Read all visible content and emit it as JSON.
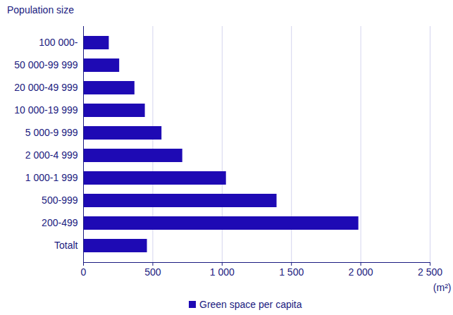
{
  "chart_data": {
    "type": "bar",
    "orientation": "horizontal",
    "y_label": "Population size",
    "x_label": "(m²)",
    "categories": [
      "100 000-",
      "50 000-99 999",
      "20 000-49 999",
      "10 000-19 999",
      "5 000-9 999",
      "2 000-4 999",
      "1 000-1 999",
      "500-999",
      "200-499",
      "Totalt"
    ],
    "series": [
      {
        "name": "Green space per capita",
        "color": "#1e0ab4",
        "values": [
          185,
          260,
          370,
          445,
          565,
          715,
          1030,
          1395,
          1985,
          460
        ]
      }
    ],
    "xlim": [
      0,
      2500
    ],
    "xticks": [
      0,
      500,
      {
        "value": 1000,
        "label": "1 000"
      },
      {
        "value": 1500,
        "label": "1 500"
      },
      {
        "value": 2000,
        "label": "2 000"
      },
      {
        "value": 2500,
        "label": "2 500"
      }
    ],
    "grid": true,
    "legend": "bottom"
  }
}
